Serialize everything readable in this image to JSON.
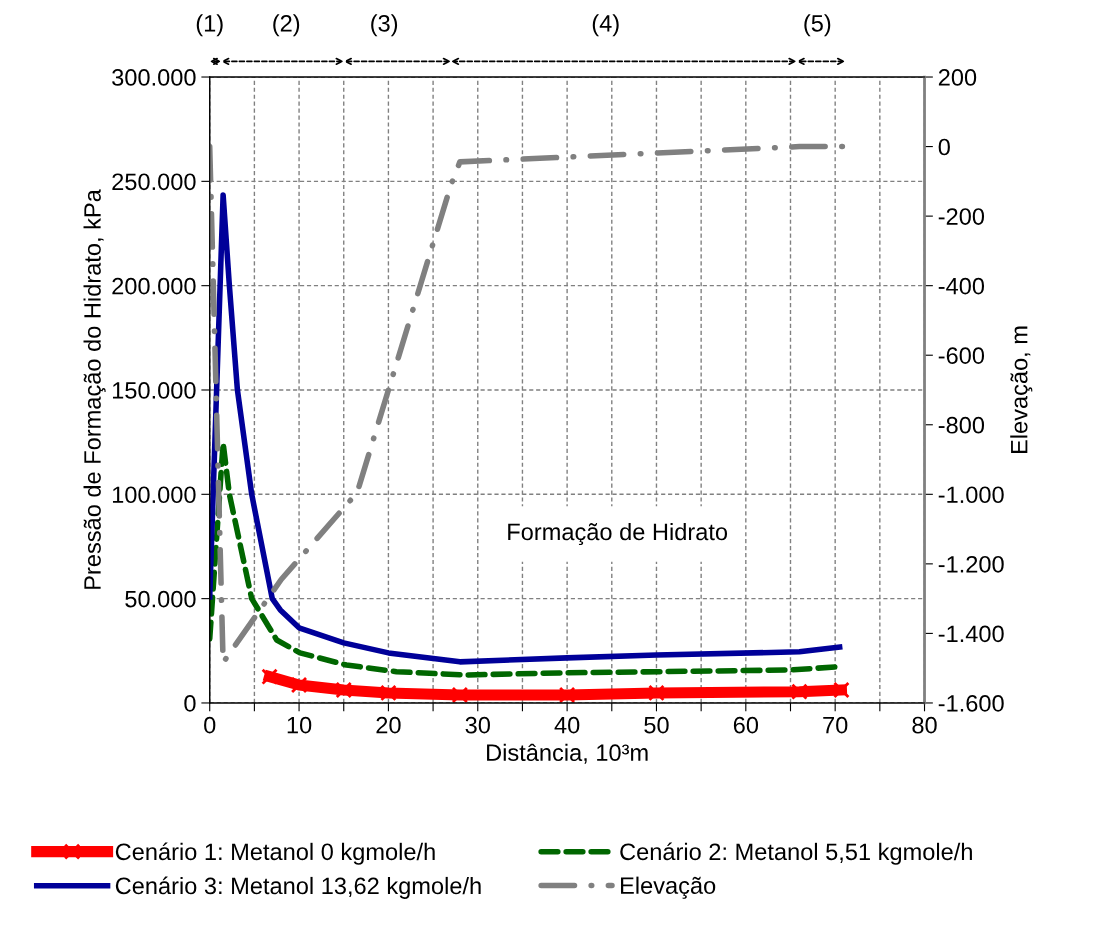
{
  "chart_data": {
    "type": "line",
    "xlabel": "Distância, 10³m",
    "ylabel": "Pressão de Formação do Hidrato, kPa",
    "y2label": "Elevação, m",
    "xlim": [
      0,
      80
    ],
    "xticks": [
      0,
      {
        "value": 5,
        "label": null
      },
      10,
      {
        "value": 15,
        "label": null
      },
      20,
      {
        "value": 25,
        "label": null
      },
      30,
      {
        "value": 35,
        "label": null
      },
      40,
      {
        "value": 45,
        "label": null
      },
      50,
      {
        "value": 55,
        "label": null
      },
      60,
      {
        "value": 65,
        "label": null
      },
      70,
      {
        "value": 75,
        "label": null
      },
      80
    ],
    "ylim": [
      0,
      300000
    ],
    "yticks": [
      {
        "value": 0,
        "label": "0"
      },
      {
        "value": 50000,
        "label": "50.000"
      },
      {
        "value": 100000,
        "label": "100.000"
      },
      {
        "value": 150000,
        "label": "150.000"
      },
      {
        "value": 200000,
        "label": "200.000"
      },
      {
        "value": 250000,
        "label": "250.000"
      },
      {
        "value": 300000,
        "label": "300.000"
      }
    ],
    "y2lim": [
      -1600,
      200
    ],
    "y2ticks": [
      {
        "value": -1600,
        "label": "-1.600"
      },
      {
        "value": -1400,
        "label": "-1.400"
      },
      {
        "value": -1200,
        "label": "-1.200"
      },
      {
        "value": -1000,
        "label": "-1.000"
      },
      -800,
      -600,
      -400,
      -200,
      0,
      200
    ],
    "grid": true,
    "legend": "bottom",
    "annotations": [
      "Formação de Hidrato",
      "(1)",
      "(2)",
      "(3)",
      "(4)",
      "(5)"
    ],
    "series": [
      {
        "name": "Cenário 1: Metanol 0 kgmole/h",
        "color": "#ff0000",
        "marker": "cross",
        "line_style": "solid",
        "x": [
          6.7,
          10,
          15,
          20,
          28,
          40,
          50,
          66,
          70.7
        ],
        "values": [
          12600,
          8600,
          6200,
          4800,
          3800,
          3800,
          4800,
          5400,
          6200
        ]
      },
      {
        "name": "Cenário 2: Metanol 5,51 kgmole/h",
        "color": "#006600",
        "marker": "none",
        "line_style": "dashed",
        "x": [
          0,
          1.5,
          2.2,
          4.7,
          7.5,
          10.1,
          15.3,
          20.9,
          28.7,
          39.1,
          50.3,
          64.9,
          70.6
        ],
        "values": [
          30700,
          124600,
          100000,
          50000,
          30200,
          24000,
          18200,
          15000,
          13400,
          14400,
          15000,
          15800,
          17400
        ]
      },
      {
        "name": "Cenário 3: Metanol 13,62 kgmole/h",
        "color": "#000099",
        "marker": "none",
        "line_style": "solid",
        "x": [
          0,
          1.5,
          2.2,
          3.1,
          4.7,
          7.0,
          7.9,
          10,
          15,
          20,
          28,
          40,
          50,
          66,
          70.5
        ],
        "values": [
          50800,
          243500,
          200000,
          150000,
          100000,
          50000,
          44600,
          36000,
          28800,
          24000,
          19700,
          21600,
          23000,
          24500,
          26800
        ]
      },
      {
        "name": "Elevação",
        "color": "#808080",
        "marker": "none",
        "line_style": "dashdot",
        "axis": "y2",
        "x": [
          0,
          1.5,
          8,
          16.5,
          27,
          28,
          66,
          71
        ],
        "values": [
          0,
          -1484,
          -1245,
          -995,
          -110,
          -44,
          0,
          0
        ]
      }
    ]
  }
}
